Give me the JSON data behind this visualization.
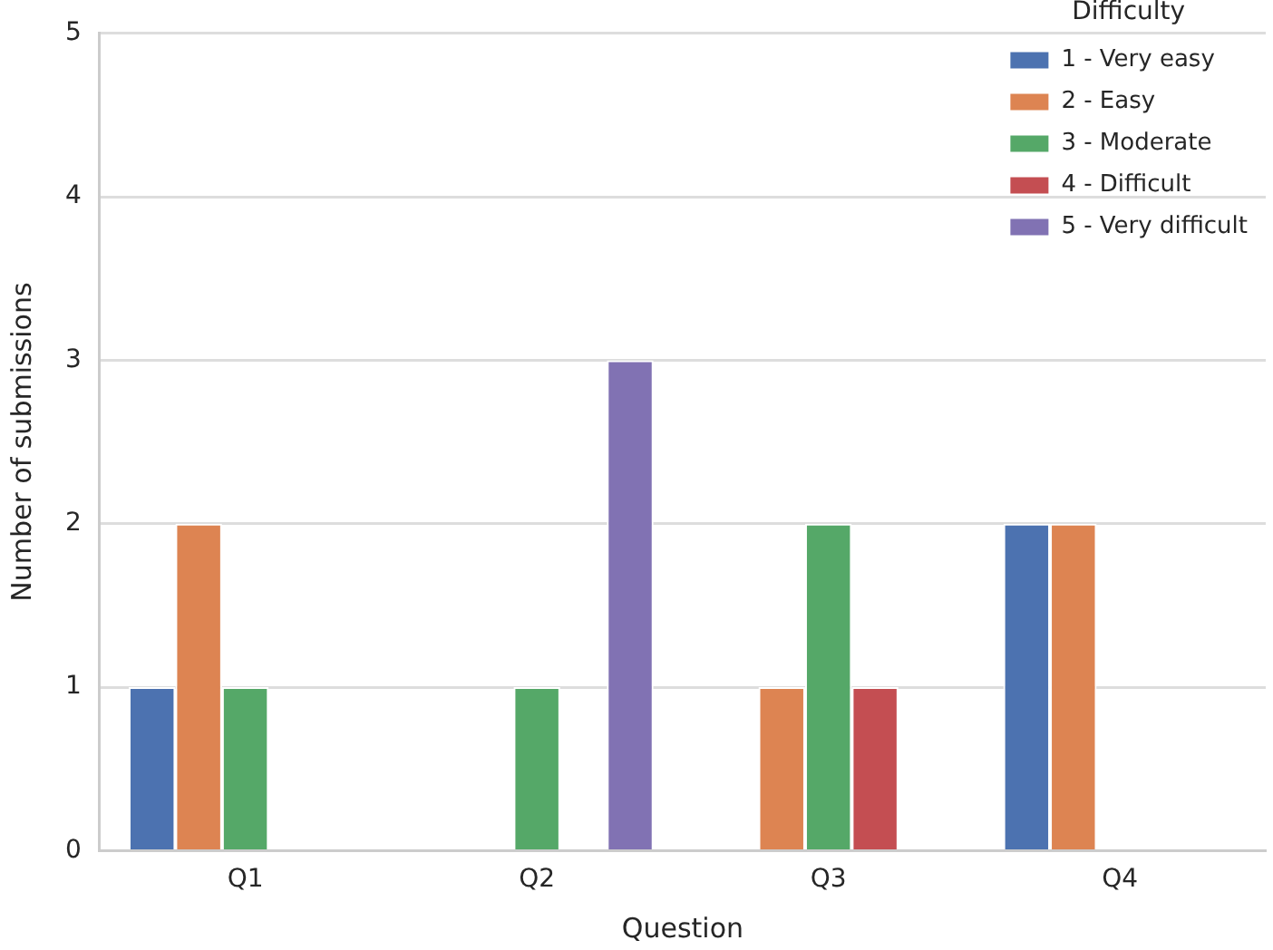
{
  "chart_data": {
    "type": "bar",
    "xlabel": "Question",
    "ylabel": "Number of submissions",
    "legend_title": "Difficulty",
    "categories": [
      "Q1",
      "Q2",
      "Q3",
      "Q4"
    ],
    "series": [
      {
        "name": "1 - Very easy",
        "color": "#4c72b0",
        "values": [
          1,
          0,
          0,
          2
        ]
      },
      {
        "name": "2 - Easy",
        "color": "#dd8452",
        "values": [
          2,
          0,
          1,
          2
        ]
      },
      {
        "name": "3 - Moderate",
        "color": "#55a868",
        "values": [
          1,
          1,
          2,
          0
        ]
      },
      {
        "name": "4 - Difficult",
        "color": "#c44e52",
        "values": [
          0,
          0,
          1,
          0
        ]
      },
      {
        "name": "5 - Very difficult",
        "color": "#8172b3",
        "values": [
          0,
          3,
          0,
          0
        ]
      }
    ],
    "ylim": [
      0,
      5
    ],
    "yticks": [
      0,
      1,
      2,
      3,
      4,
      5
    ],
    "grid": "y",
    "legend": "top right"
  }
}
